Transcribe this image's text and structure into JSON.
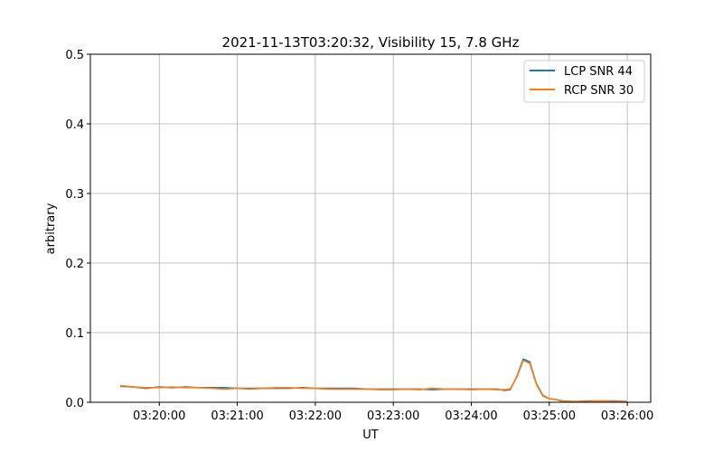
{
  "chart_data": {
    "type": "line",
    "title": "2021-11-13T03:20:32, Visibility 15, 7.8 GHz",
    "xlabel": "UT",
    "ylabel": "arbitrary",
    "xlim": [
      "03:19:07",
      "03:26:18"
    ],
    "ylim": [
      0,
      0.5
    ],
    "xticks": [
      "03:20:00",
      "03:21:00",
      "03:22:00",
      "03:23:00",
      "03:24:00",
      "03:25:00",
      "03:26:00"
    ],
    "yticks": [
      "0.0",
      "0.1",
      "0.2",
      "0.3",
      "0.4",
      "0.5"
    ],
    "grid": true,
    "legend_position": "top-right",
    "x": [
      "03:19:30",
      "03:19:40",
      "03:19:50",
      "03:20:00",
      "03:20:10",
      "03:20:20",
      "03:20:30",
      "03:20:40",
      "03:20:50",
      "03:21:00",
      "03:21:10",
      "03:21:20",
      "03:21:30",
      "03:21:40",
      "03:21:50",
      "03:22:00",
      "03:22:10",
      "03:22:20",
      "03:22:30",
      "03:22:40",
      "03:22:50",
      "03:23:00",
      "03:23:10",
      "03:23:20",
      "03:23:30",
      "03:23:40",
      "03:23:50",
      "03:24:00",
      "03:24:10",
      "03:24:20",
      "03:24:25",
      "03:24:30",
      "03:24:35",
      "03:24:40",
      "03:24:45",
      "03:24:50",
      "03:24:55",
      "03:25:00",
      "03:25:05",
      "03:25:10",
      "03:25:20",
      "03:25:30",
      "03:25:40",
      "03:25:50",
      "03:26:00"
    ],
    "series": [
      {
        "name": "LCP SNR 44",
        "color": "#1f77b4",
        "values": [
          0.023,
          0.022,
          0.02,
          0.022,
          0.021,
          0.022,
          0.021,
          0.021,
          0.021,
          0.02,
          0.02,
          0.02,
          0.02,
          0.02,
          0.021,
          0.02,
          0.02,
          0.02,
          0.02,
          0.019,
          0.019,
          0.019,
          0.019,
          0.019,
          0.018,
          0.019,
          0.019,
          0.019,
          0.019,
          0.019,
          0.017,
          0.018,
          0.037,
          0.062,
          0.058,
          0.027,
          0.01,
          0.005,
          0.004,
          0.002,
          0.001,
          0.002,
          0.002,
          0.002,
          0.001
        ]
      },
      {
        "name": "RCP SNR 30",
        "color": "#ff7f0e",
        "values": [
          0.024,
          0.022,
          0.021,
          0.021,
          0.022,
          0.021,
          0.021,
          0.02,
          0.019,
          0.02,
          0.019,
          0.02,
          0.021,
          0.021,
          0.02,
          0.02,
          0.019,
          0.019,
          0.019,
          0.019,
          0.018,
          0.018,
          0.019,
          0.018,
          0.02,
          0.019,
          0.019,
          0.018,
          0.019,
          0.018,
          0.018,
          0.019,
          0.036,
          0.06,
          0.056,
          0.026,
          0.009,
          0.005,
          0.004,
          0.001,
          0.001,
          0.001,
          0.002,
          0.001,
          0.001
        ]
      }
    ]
  }
}
